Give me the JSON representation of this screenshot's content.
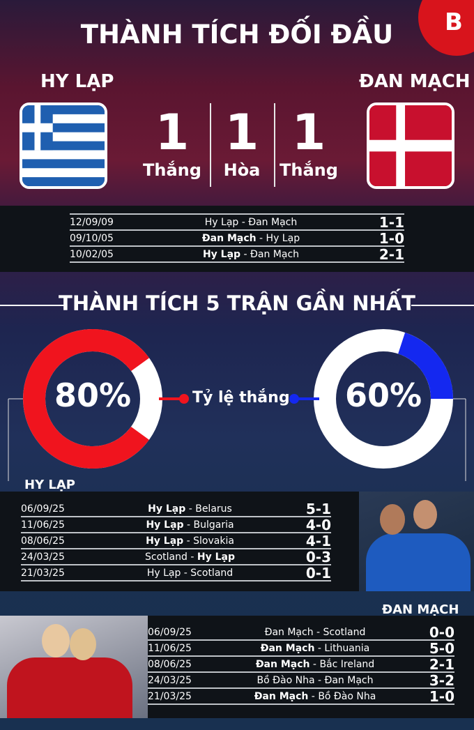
{
  "title": "THÀNH TÍCH ĐỐI ĐẦU",
  "logo": "B",
  "team_left": "HY LẠP",
  "team_right": "ĐAN MẠCH",
  "stats": [
    {
      "value": "1",
      "label": "Thắng"
    },
    {
      "value": "1",
      "label": "Hòa"
    },
    {
      "value": "1",
      "label": "Thắng"
    }
  ],
  "h2h": [
    {
      "date": "12/09/09",
      "home": "Hy Lạp",
      "away": "Đan Mạch",
      "bold": "",
      "score": "1-1"
    },
    {
      "date": "09/10/05",
      "home": "Đan Mạch",
      "away": "Hy Lạp",
      "bold": "home",
      "score": "1-0"
    },
    {
      "date": "10/02/05",
      "home": "Hy Lạp",
      "away": "Đan Mạch",
      "bold": "home",
      "score": "2-1"
    }
  ],
  "section_title": "THÀNH TÍCH 5 TRẬN GẦN NHẤT",
  "win_rate_label": "Tỷ lệ thắng",
  "left_rate": {
    "text": "80%",
    "value": 80,
    "color": "#f0141e"
  },
  "right_rate": {
    "text": "60%",
    "value": 60,
    "color": "#1428f0"
  },
  "left_label": "HY LẠP",
  "right_label": "ĐAN MẠCH",
  "left_matches": [
    {
      "date": "06/09/25",
      "home": "Hy Lạp",
      "away": "Belarus",
      "bold": "home",
      "score": "5-1"
    },
    {
      "date": "11/06/25",
      "home": "Hy Lạp",
      "away": "Bulgaria",
      "bold": "home",
      "score": "4-0"
    },
    {
      "date": "08/06/25",
      "home": "Hy Lạp",
      "away": "Slovakia",
      "bold": "home",
      "score": "4-1"
    },
    {
      "date": "24/03/25",
      "home": "Scotland",
      "away": "Hy Lạp",
      "bold": "away",
      "score": "0-3"
    },
    {
      "date": "21/03/25",
      "home": "Hy Lạp",
      "away": "Scotland",
      "bold": "",
      "score": "0-1"
    }
  ],
  "right_matches": [
    {
      "date": "06/09/25",
      "home": "Đan Mạch",
      "away": "Scotland",
      "bold": "",
      "score": "0-0"
    },
    {
      "date": "11/06/25",
      "home": "Đan Mạch",
      "away": "Lithuania",
      "bold": "home",
      "score": "5-0"
    },
    {
      "date": "08/06/25",
      "home": "Đan Mạch",
      "away": "Bắc Ireland",
      "bold": "home",
      "score": "2-1"
    },
    {
      "date": "24/03/25",
      "home": "Bồ Đào Nha",
      "away": "Đan Mạch",
      "bold": "",
      "score": "3-2"
    },
    {
      "date": "21/03/25",
      "home": "Đan Mạch",
      "away": "Bồ Đào Nha",
      "bold": "home",
      "score": "1-0"
    }
  ]
}
